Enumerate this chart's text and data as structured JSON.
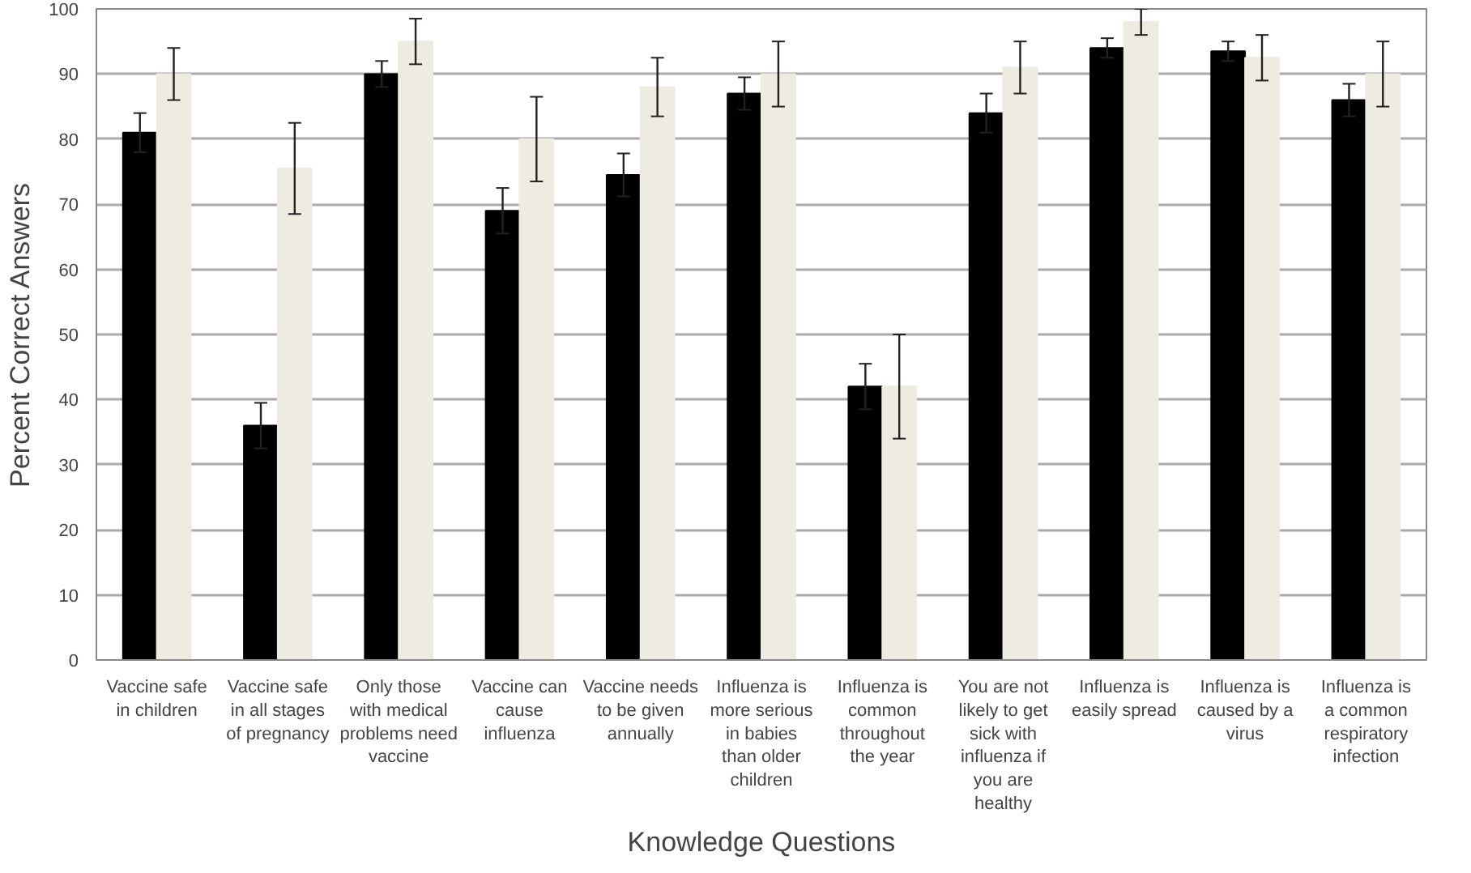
{
  "chart_data": {
    "type": "bar",
    "xlabel": "Knowledge Questions",
    "ylabel": "Percent Correct Answers",
    "categories": [
      "Vaccine safe in children",
      "Vaccine safe in all stages of pregnancy",
      "Only those with medical problems need vaccine",
      "Vaccine can cause influenza",
      "Vaccine needs to be given annually",
      "Influenza is more serious in babies than older children",
      "Influenza is common throughout the year",
      "You are not likely to get sick with influenza if you are healthy",
      "Influenza is easily spread",
      "Influenza is caused by a virus",
      "Influenza is a common respiratory infection"
    ],
    "series": [
      {
        "color": "#000000",
        "values": [
          81,
          36,
          90,
          69,
          74.5,
          87,
          42,
          84,
          94,
          93.5,
          86
        ],
        "errors": [
          3,
          3.5,
          2,
          3.5,
          3.3,
          2.5,
          3.5,
          3,
          1.5,
          1.5,
          2.5
        ]
      },
      {
        "color": "#eeebe0",
        "values": [
          90,
          75.5,
          95,
          80,
          88,
          90,
          42,
          91,
          98,
          92.5,
          90
        ],
        "errors": [
          4,
          7,
          3.5,
          6.5,
          4.5,
          5,
          8,
          4,
          2,
          3.5,
          5
        ]
      }
    ],
    "ylim": [
      0,
      100
    ],
    "yticks": [
      0,
      10,
      20,
      30,
      40,
      50,
      60,
      70,
      80,
      90,
      100
    ],
    "grid": "y"
  }
}
